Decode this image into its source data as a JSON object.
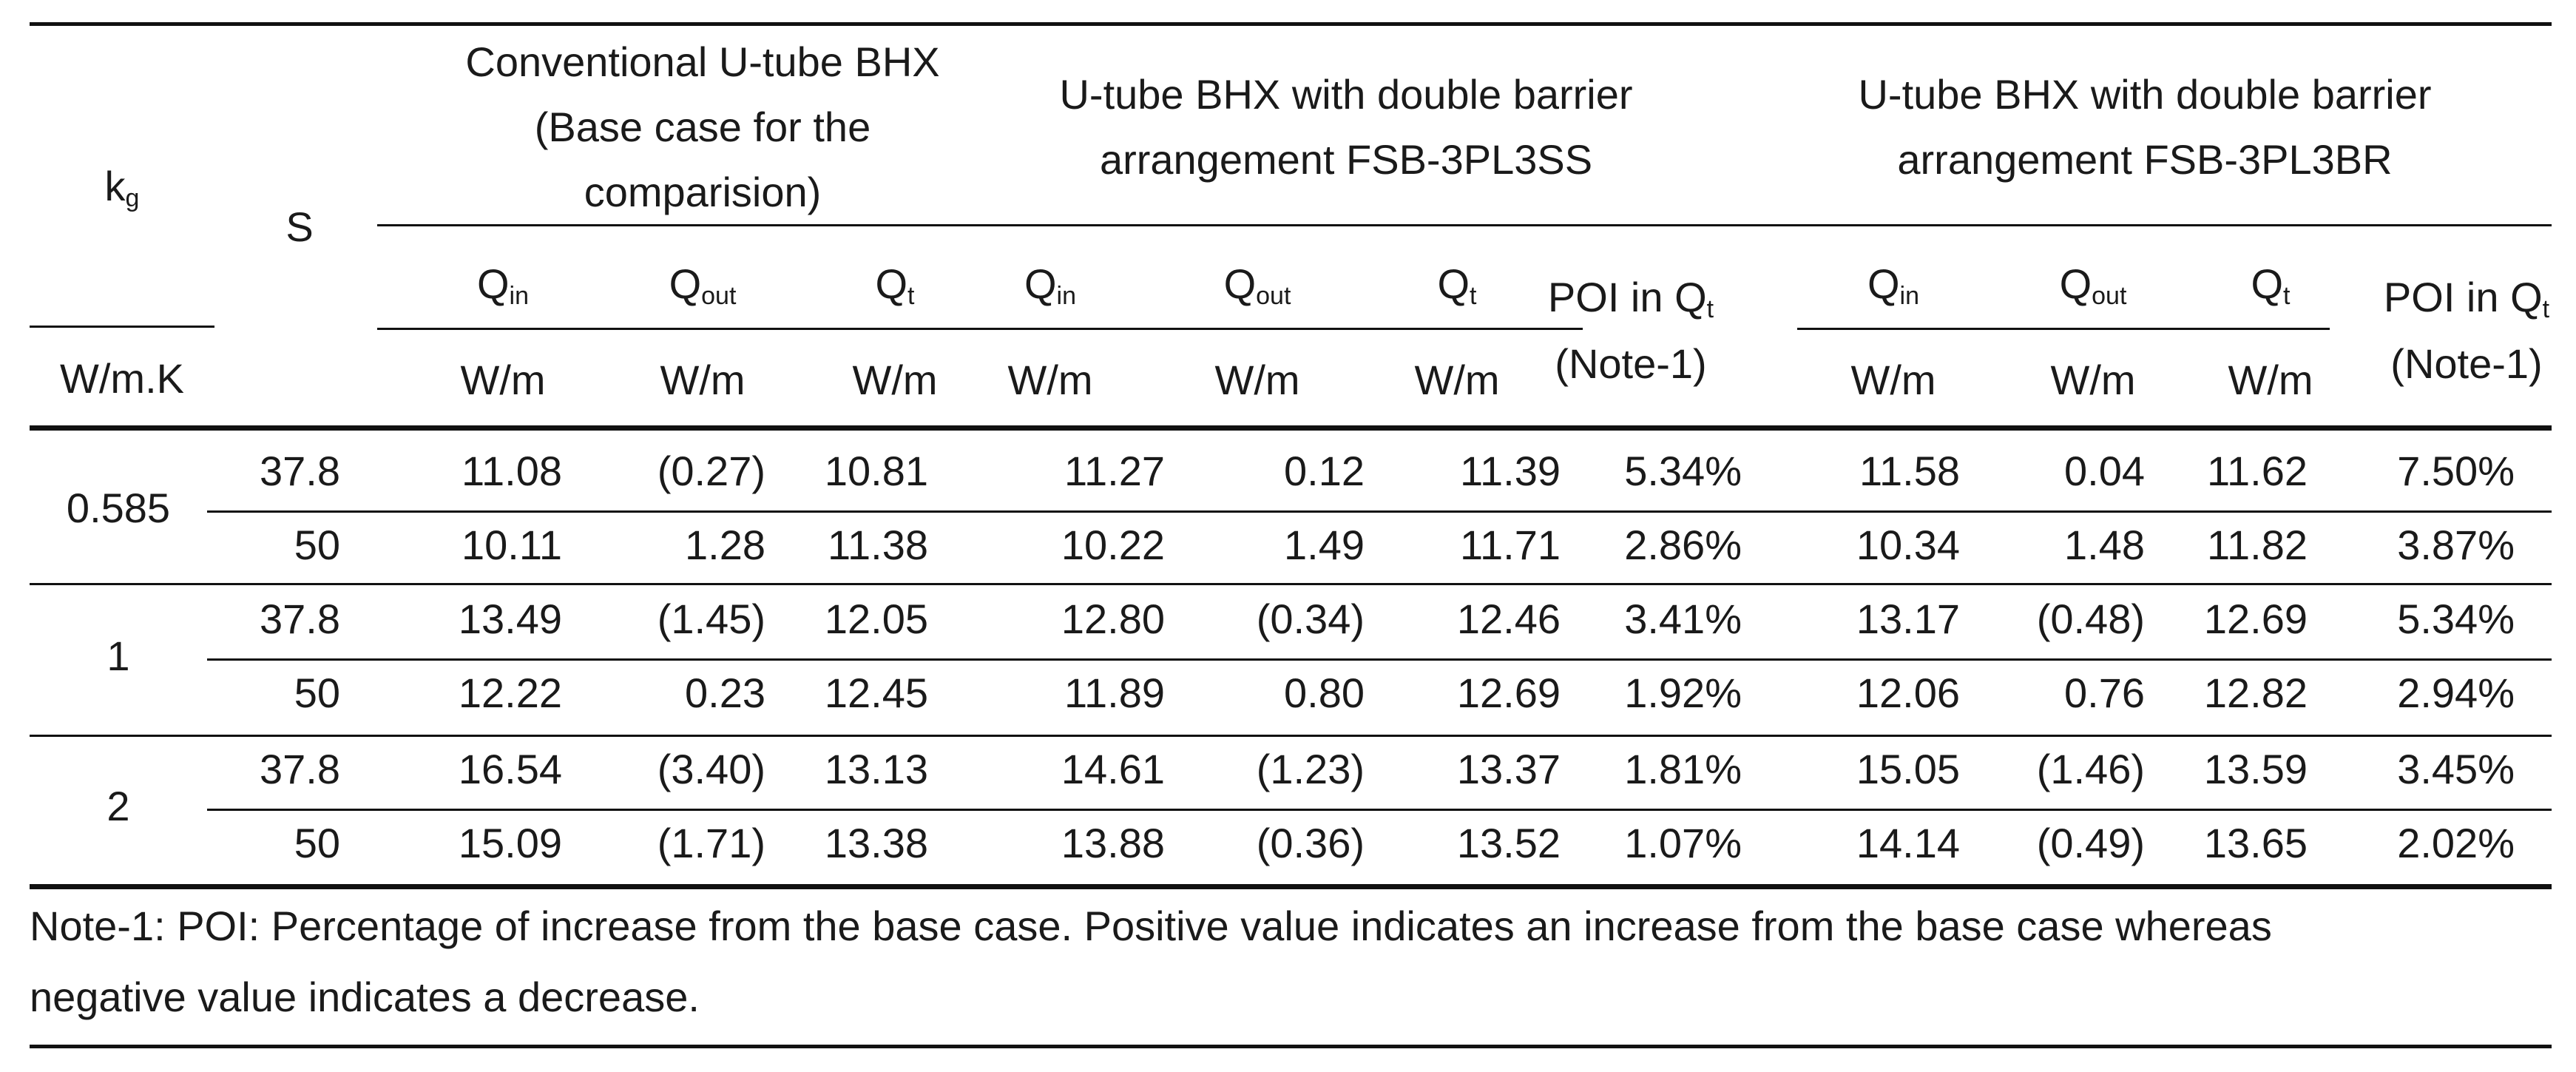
{
  "table": {
    "header": {
      "kg_symbol": "k",
      "kg_sub": "g",
      "kg_unit": "W/m.K",
      "s_label": "S",
      "groups": [
        {
          "lines": [
            "Conventional U-tube BHX",
            "(Base case for the",
            "comparision)"
          ]
        },
        {
          "lines": [
            "U-tube BHX with double barrier",
            "arrangement FSB-3PL3SS"
          ]
        },
        {
          "lines": [
            "U-tube BHX with double barrier",
            "arrangement FSB-3PL3BR"
          ]
        }
      ],
      "q_symbol": "Q",
      "sub_in": "in",
      "sub_out": "out",
      "sub_t": "t",
      "unit": "W/m",
      "poi_label": "POI in Q",
      "poi_sub": "t",
      "poi_note": "(Note-1)"
    },
    "groups": [
      {
        "kg": "0.585",
        "rows": [
          {
            "s": "37.8",
            "cells": [
              "11.08",
              "(0.27)",
              "10.81",
              "11.27",
              "0.12",
              "11.39",
              "5.34%",
              "11.58",
              "0.04",
              "11.62",
              "7.50%"
            ]
          },
          {
            "s": "50",
            "cells": [
              "10.11",
              "1.28",
              "11.38",
              "10.22",
              "1.49",
              "11.71",
              "2.86%",
              "10.34",
              "1.48",
              "11.82",
              "3.87%"
            ]
          }
        ]
      },
      {
        "kg": "1",
        "rows": [
          {
            "s": "37.8",
            "cells": [
              "13.49",
              "(1.45)",
              "12.05",
              "12.80",
              "(0.34)",
              "12.46",
              "3.41%",
              "13.17",
              "(0.48)",
              "12.69",
              "5.34%"
            ]
          },
          {
            "s": "50",
            "cells": [
              "12.22",
              "0.23",
              "12.45",
              "11.89",
              "0.80",
              "12.69",
              "1.92%",
              "12.06",
              "0.76",
              "12.82",
              "2.94%"
            ]
          }
        ]
      },
      {
        "kg": "2",
        "rows": [
          {
            "s": "37.8",
            "cells": [
              "16.54",
              "(3.40)",
              "13.13",
              "14.61",
              "(1.23)",
              "13.37",
              "1.81%",
              "15.05",
              "(1.46)",
              "13.59",
              "3.45%"
            ]
          },
          {
            "s": "50",
            "cells": [
              "15.09",
              "(1.71)",
              "13.38",
              "13.88",
              "(0.36)",
              "13.52",
              "1.07%",
              "14.14",
              "(0.49)",
              "13.65",
              "2.02%"
            ]
          }
        ]
      }
    ],
    "note_lines": [
      "Note-1: POI: Percentage of increase from the base case. Positive value indicates an increase from the base case whereas",
      "negative value indicates a decrease."
    ]
  }
}
